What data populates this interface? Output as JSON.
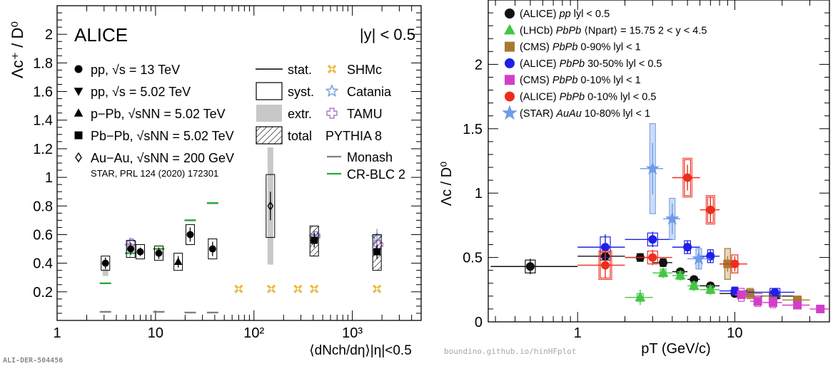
{
  "footer": {
    "left_id": "ALI-DER-504456",
    "credit": "boundino.github.io/hinHFplot"
  },
  "chart_data": [
    {
      "type": "scatter",
      "experiment": "ALICE",
      "ylabel": "Λc⁺ / D⁰",
      "xlabel": "⟨dNch/dη⟩|η|<0.5",
      "rapidity": "|y| < 0.5",
      "xscale": "log",
      "xlim": [
        1,
        5000
      ],
      "ylim": [
        0,
        2.2
      ],
      "xticks": [
        {
          "v": 1,
          "label": "1"
        },
        {
          "v": 10,
          "label": "10"
        },
        {
          "v": 100,
          "label": "10²"
        },
        {
          "v": 1000,
          "label": "10³"
        }
      ],
      "yticks": [
        0.2,
        0.4,
        0.6,
        0.8,
        1,
        1.2,
        1.4,
        1.6,
        1.8,
        2
      ],
      "legend_systems": [
        {
          "marker": "circle",
          "label": "pp, √s = 13 TeV"
        },
        {
          "marker": "tri-down",
          "label": "pp, √s = 5.02 TeV"
        },
        {
          "marker": "tri-up",
          "label": "p−Pb, √sNN = 5.02 TeV"
        },
        {
          "marker": "square",
          "label": "Pb−Pb, √sNN = 5.02 TeV"
        },
        {
          "marker": "diamond",
          "label": "Au−Au, √sNN = 200 GeV"
        }
      ],
      "legend_reference": "STAR, PRL 124 (2020) 172301",
      "legend_uncertainties": [
        "stat.",
        "syst.",
        "extr.",
        "total"
      ],
      "legend_models": [
        "SHMc",
        "Catania",
        "TAMU",
        "PYTHIA 8",
        "Monash",
        "CR-BLC 2"
      ],
      "points": [
        {
          "x": 3.1,
          "y": 0.4,
          "stat": 0.04,
          "syst": 0.05,
          "marker": "circle",
          "extr": [
            0.31,
            0.36
          ]
        },
        {
          "x": 5.6,
          "y": 0.5,
          "stat": 0.04,
          "syst": 0.06,
          "marker": "circle"
        },
        {
          "x": 7.0,
          "y": 0.48,
          "stat": 0.03,
          "syst": 0.05,
          "marker": "circle"
        },
        {
          "x": 10.8,
          "y": 0.47,
          "stat": 0.04,
          "syst": 0.05,
          "marker": "circle"
        },
        {
          "x": 17.0,
          "y": 0.41,
          "stat": 0.04,
          "syst": 0.06,
          "marker": "tri-up"
        },
        {
          "x": 22.5,
          "y": 0.6,
          "stat": 0.05,
          "syst": 0.07,
          "marker": "circle"
        },
        {
          "x": 38.0,
          "y": 0.5,
          "stat": 0.05,
          "syst": 0.07,
          "marker": "circle"
        },
        {
          "x": 147,
          "y": 0.8,
          "stat": 0.1,
          "syst": 0.22,
          "marker": "diamond",
          "extr": [
            0.39,
            1.21
          ]
        },
        {
          "x": 410,
          "y": 0.56,
          "stat": 0.05,
          "total": [
            0.45,
            0.66
          ],
          "marker": "square"
        },
        {
          "x": 1780,
          "y": 0.48,
          "stat": 0.05,
          "total": [
            0.35,
            0.6
          ],
          "marker": "square"
        }
      ],
      "model_shmc": [
        {
          "x": 70,
          "y": 0.22
        },
        {
          "x": 150,
          "y": 0.22
        },
        {
          "x": 280,
          "y": 0.22
        },
        {
          "x": 410,
          "y": 0.22
        },
        {
          "x": 1780,
          "y": 0.22
        }
      ],
      "model_catania": [
        {
          "x": 5.5,
          "y": 0.52,
          "lo": 0.44,
          "hi": 0.56
        },
        {
          "x": 410,
          "y": 0.58,
          "lo": 0.54,
          "hi": 0.62
        },
        {
          "x": 1780,
          "y": 0.58,
          "lo": 0.55,
          "hi": 0.61
        }
      ],
      "model_tamu": [
        {
          "x": 5.5,
          "y": 0.54,
          "lo": 0.5,
          "hi": 0.58
        },
        {
          "x": 410,
          "y": 0.59,
          "lo": 0.55,
          "hi": 0.63
        },
        {
          "x": 1780,
          "y": 0.53,
          "lo": 0.49,
          "hi": 0.64
        }
      ],
      "model_monash": [
        {
          "x": 3.1,
          "y": 0.06
        },
        {
          "x": 10.8,
          "y": 0.06
        },
        {
          "x": 22.5,
          "y": 0.055
        },
        {
          "x": 38,
          "y": 0.055
        }
      ],
      "model_crblc": [
        {
          "x": 3.1,
          "y": 0.26
        },
        {
          "x": 5.6,
          "y": 0.47
        },
        {
          "x": 10.8,
          "y": 0.5
        },
        {
          "x": 22.5,
          "y": 0.7
        },
        {
          "x": 38,
          "y": 0.82
        }
      ],
      "colors": {
        "shmc": "#f0b840",
        "catania": "#73a6d6",
        "tamu": "#b07cc6",
        "monash": "#808080",
        "crblc": "#2aa73a",
        "extr": "#c8c8c8"
      }
    },
    {
      "type": "scatter",
      "ylabel": "Λc / D⁰",
      "xlabel": "pT (GeV/c)",
      "xscale": "log",
      "xlim": [
        0.27,
        40
      ],
      "ylim": [
        0,
        2.5
      ],
      "xticks": [
        {
          "v": 1,
          "label": "1"
        },
        {
          "v": 10,
          "label": "10"
        }
      ],
      "yticks": [
        {
          "v": 0,
          "label": "0"
        },
        {
          "v": 0.5,
          "label": "0.5"
        },
        {
          "v": 1,
          "label": "1"
        },
        {
          "v": 1.5,
          "label": "1.5"
        },
        {
          "v": 2,
          "label": "2"
        }
      ],
      "series": [
        {
          "key": "alice-pp",
          "name_a": "(ALICE) ",
          "name_b": "pp",
          "name_c": " lyl < 0.5",
          "color": "#111111",
          "marker": "circle",
          "filled": true,
          "points": [
            {
              "x": 0.5,
              "y": 0.43,
              "lo": 0.0,
              "hi": 1.0,
              "stat": 0.06,
              "syst": 0.05
            },
            {
              "x": 1.5,
              "y": 0.51,
              "lo": 1.0,
              "hi": 2.0,
              "stat": 0.03,
              "syst": 0.03
            },
            {
              "x": 2.5,
              "y": 0.5,
              "lo": 2.0,
              "hi": 3.0,
              "stat": 0.03,
              "syst": 0.03
            },
            {
              "x": 3.5,
              "y": 0.46,
              "lo": 3.0,
              "hi": 4.0,
              "stat": 0.02,
              "syst": 0.03
            },
            {
              "x": 4.5,
              "y": 0.39,
              "lo": 4.0,
              "hi": 5.0,
              "stat": 0.02,
              "syst": 0.02
            },
            {
              "x": 5.5,
              "y": 0.33,
              "lo": 5.0,
              "hi": 6.0,
              "stat": 0.02,
              "syst": 0.02
            },
            {
              "x": 7.0,
              "y": 0.28,
              "lo": 6.0,
              "hi": 8.0,
              "stat": 0.02,
              "syst": 0.02
            },
            {
              "x": 10.0,
              "y": 0.22,
              "lo": 8.0,
              "hi": 12.0,
              "stat": 0.02,
              "syst": 0.02
            },
            {
              "x": 18.0,
              "y": 0.2,
              "lo": 12.0,
              "hi": 24.0,
              "stat": 0.02,
              "syst": 0.02
            }
          ]
        },
        {
          "key": "lhcb-pbpb",
          "name_a": "(LHCb) ",
          "name_b": "PbPb",
          "name_c": " ⟨Npart⟩ = 15.75 2 < y < 4.5",
          "color": "#44c744",
          "marker": "tri-up",
          "filled": true,
          "points": [
            {
              "x": 2.5,
              "y": 0.19,
              "lo": 2.0,
              "hi": 3.0,
              "stat": 0.06,
              "syst": 0.03
            },
            {
              "x": 3.5,
              "y": 0.38,
              "lo": 3.0,
              "hi": 4.0,
              "stat": 0.04,
              "syst": 0.03
            },
            {
              "x": 4.5,
              "y": 0.36,
              "lo": 4.0,
              "hi": 5.0,
              "stat": 0.04,
              "syst": 0.03
            },
            {
              "x": 5.5,
              "y": 0.28,
              "lo": 5.0,
              "hi": 6.0,
              "stat": 0.04,
              "syst": 0.03
            },
            {
              "x": 7.0,
              "y": 0.25,
              "lo": 6.0,
              "hi": 8.0,
              "stat": 0.04,
              "syst": 0.03
            }
          ]
        },
        {
          "key": "cms-0-90",
          "name_a": "(CMS) ",
          "name_b": "PbPb",
          "name_c": " 0-90% lyl < 1",
          "color": "#a8792e",
          "marker": "square",
          "filled": true,
          "points": [
            {
              "x": 9.0,
              "y": 0.45,
              "lo": 8.0,
              "hi": 10.0,
              "stat": 0.06,
              "syst": 0.12
            },
            {
              "x": 12.5,
              "y": 0.22,
              "lo": 10.0,
              "hi": 15.0,
              "stat": 0.04,
              "syst": 0.04
            },
            {
              "x": 17.5,
              "y": 0.2,
              "lo": 15.0,
              "hi": 20.0,
              "stat": 0.04,
              "syst": 0.04
            },
            {
              "x": 25.0,
              "y": 0.17,
              "lo": 20.0,
              "hi": 30.0,
              "stat": 0.03,
              "syst": 0.03
            }
          ]
        },
        {
          "key": "alice-30-50",
          "name_a": "(ALICE) ",
          "name_b": "PbPb",
          "name_c": " 30-50% lyl < 0.5",
          "color": "#1f1fe8",
          "marker": "circle",
          "filled": true,
          "points": [
            {
              "x": 1.5,
              "y": 0.58,
              "lo": 1.0,
              "hi": 2.0,
              "stat": 0.1,
              "syst": 0.08
            },
            {
              "x": 3.0,
              "y": 0.64,
              "lo": 2.0,
              "hi": 4.0,
              "stat": 0.06,
              "syst": 0.05
            },
            {
              "x": 5.0,
              "y": 0.58,
              "lo": 4.0,
              "hi": 6.0,
              "stat": 0.05,
              "syst": 0.05
            },
            {
              "x": 7.0,
              "y": 0.51,
              "lo": 6.0,
              "hi": 8.0,
              "stat": 0.05,
              "syst": 0.05
            },
            {
              "x": 10.0,
              "y": 0.24,
              "lo": 8.0,
              "hi": 12.0,
              "stat": 0.03,
              "syst": 0.03
            },
            {
              "x": 18.0,
              "y": 0.23,
              "lo": 12.0,
              "hi": 24.0,
              "stat": 0.03,
              "syst": 0.03
            }
          ]
        },
        {
          "key": "cms-0-10",
          "name_a": "(CMS) ",
          "name_b": "PbPb",
          "name_c": " 0-10% lyl < 1",
          "color": "#d23ec9",
          "marker": "square",
          "filled": true,
          "points": [
            {
              "x": 11.0,
              "y": 0.21,
              "lo": 10.0,
              "hi": 12.5,
              "stat": 0.03,
              "syst": 0.05
            },
            {
              "x": 14.0,
              "y": 0.16,
              "lo": 12.5,
              "hi": 15.0,
              "stat": 0.03,
              "syst": 0.04
            },
            {
              "x": 17.5,
              "y": 0.15,
              "lo": 15.0,
              "hi": 20.0,
              "stat": 0.03,
              "syst": 0.04
            },
            {
              "x": 25.0,
              "y": 0.13,
              "lo": 20.0,
              "hi": 30.0,
              "stat": 0.03,
              "syst": 0.03
            },
            {
              "x": 35.0,
              "y": 0.1,
              "lo": 30.0,
              "hi": 40.0,
              "stat": 0.02,
              "syst": 0.02
            }
          ]
        },
        {
          "key": "alice-0-10",
          "name_a": "(ALICE) ",
          "name_b": "PbPb",
          "name_c": " 0-10% lyl < 0.5",
          "color": "#ee2d1e",
          "marker": "circle",
          "filled": true,
          "points": [
            {
              "x": 1.5,
              "y": 0.44,
              "lo": 1.0,
              "hi": 2.0,
              "stat": 0.1,
              "syst": 0.1
            },
            {
              "x": 3.0,
              "y": 0.5,
              "lo": 2.0,
              "hi": 4.0,
              "stat": 0.06,
              "syst": 0.05
            },
            {
              "x": 5.0,
              "y": 1.12,
              "lo": 4.0,
              "hi": 6.0,
              "stat": 0.1,
              "syst": 0.14
            },
            {
              "x": 7.0,
              "y": 0.87,
              "lo": 6.0,
              "hi": 8.0,
              "stat": 0.1,
              "syst": 0.1
            },
            {
              "x": 10.0,
              "y": 0.45,
              "lo": 8.0,
              "hi": 12.0,
              "stat": 0.06,
              "syst": 0.07
            }
          ]
        },
        {
          "key": "star-auau",
          "name_a": "(STAR) ",
          "name_b": "AuAu",
          "name_c": " 10-80% lyl < 1",
          "color": "#6f9ae8",
          "marker": "star",
          "filled": true,
          "points": [
            {
              "x": 3.0,
              "y": 1.19,
              "lo": 2.5,
              "hi": 3.5,
              "stat": 0.2,
              "syst": 0.35
            },
            {
              "x": 4.0,
              "y": 0.8,
              "lo": 3.5,
              "hi": 4.5,
              "stat": 0.12,
              "syst": 0.16
            },
            {
              "x": 5.9,
              "y": 0.49,
              "lo": 5.0,
              "hi": 7.0,
              "stat": 0.08,
              "syst": 0.08
            }
          ]
        }
      ]
    }
  ]
}
